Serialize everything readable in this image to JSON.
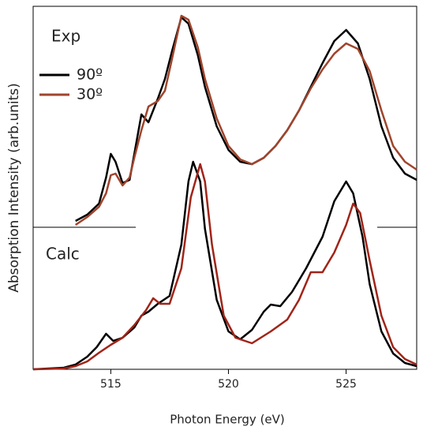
{
  "chart_data": {
    "type": "line",
    "xlabel": "Photon Energy (eV)",
    "ylabel": "Absorption Intensity (arb.units)",
    "annotations": [
      "Exp",
      "Calc"
    ],
    "xlim": [
      511.7,
      528
    ],
    "xticks": [
      515,
      520,
      525
    ],
    "ylim": [
      0,
      460
    ],
    "series": [
      {
        "name": "90º",
        "color": "#000000",
        "x": [
          513.5,
          514,
          514.5,
          514.8,
          515,
          515.2,
          515.5,
          515.8,
          516,
          516.3,
          516.6,
          517,
          517.3,
          517.6,
          518,
          518.3,
          518.7,
          519,
          519.5,
          520,
          520.5,
          521,
          521.5,
          522,
          522.5,
          523,
          523.5,
          524,
          524.5,
          525,
          525.5,
          526,
          526.5,
          527,
          527.5,
          528
        ],
        "values": [
          188,
          196,
          210,
          243,
          273,
          263,
          236,
          240,
          273,
          323,
          313,
          343,
          368,
          403,
          446,
          438,
          398,
          358,
          308,
          278,
          263,
          260,
          268,
          283,
          303,
          328,
          358,
          388,
          416,
          430,
          413,
          368,
          308,
          268,
          248,
          240
        ]
      },
      {
        "name": "30º",
        "color": "#a0442c",
        "x": [
          513.5,
          514,
          514.5,
          514.8,
          515,
          515.2,
          515.5,
          515.8,
          516,
          516.3,
          516.6,
          517,
          517.3,
          517.6,
          518,
          518.3,
          518.7,
          519,
          519.5,
          520,
          520.5,
          521,
          521.5,
          522,
          522.5,
          523,
          523.5,
          524,
          524.5,
          525,
          525.5,
          526,
          526.5,
          527,
          527.5,
          528
        ],
        "values": [
          183,
          193,
          206,
          223,
          246,
          248,
          233,
          243,
          268,
          303,
          333,
          340,
          353,
          393,
          448,
          443,
          408,
          368,
          318,
          283,
          266,
          260,
          268,
          283,
          303,
          328,
          356,
          380,
          400,
          413,
          406,
          378,
          328,
          283,
          263,
          253
        ]
      },
      {
        "color": "#000000",
        "x": [
          511.7,
          513,
          513.5,
          514,
          514.4,
          514.8,
          515.1,
          515.5,
          516,
          516.3,
          516.6,
          517,
          517.5,
          518,
          518.3,
          518.5,
          518.8,
          519,
          519.5,
          520,
          520.5,
          521,
          521.5,
          521.8,
          522.2,
          522.7,
          523.3,
          524,
          524.5,
          525,
          525.3,
          525.7,
          526,
          526.5,
          527,
          527.5,
          528
        ],
        "values": [
          0,
          2,
          6,
          16,
          28,
          45,
          36,
          40,
          53,
          68,
          73,
          83,
          93,
          158,
          238,
          263,
          238,
          178,
          88,
          48,
          38,
          50,
          73,
          82,
          80,
          98,
          128,
          168,
          213,
          238,
          223,
          168,
          108,
          48,
          20,
          8,
          4
        ]
      },
      {
        "color": "#a02418",
        "x": [
          511.7,
          513,
          513.5,
          514,
          514.5,
          515,
          515.5,
          516,
          516.5,
          516.8,
          517.1,
          517.5,
          518,
          518.4,
          518.8,
          519,
          519.3,
          519.8,
          520.3,
          521,
          521.8,
          522.5,
          523,
          523.5,
          524,
          524.5,
          525,
          525.3,
          525.6,
          526,
          526.5,
          527,
          527.5,
          528
        ],
        "values": [
          0,
          1,
          4,
          10,
          21,
          31,
          40,
          56,
          75,
          90,
          83,
          83,
          128,
          218,
          260,
          238,
          158,
          68,
          40,
          33,
          48,
          63,
          88,
          123,
          123,
          148,
          183,
          210,
          198,
          138,
          68,
          28,
          13,
          6
        ]
      }
    ]
  }
}
